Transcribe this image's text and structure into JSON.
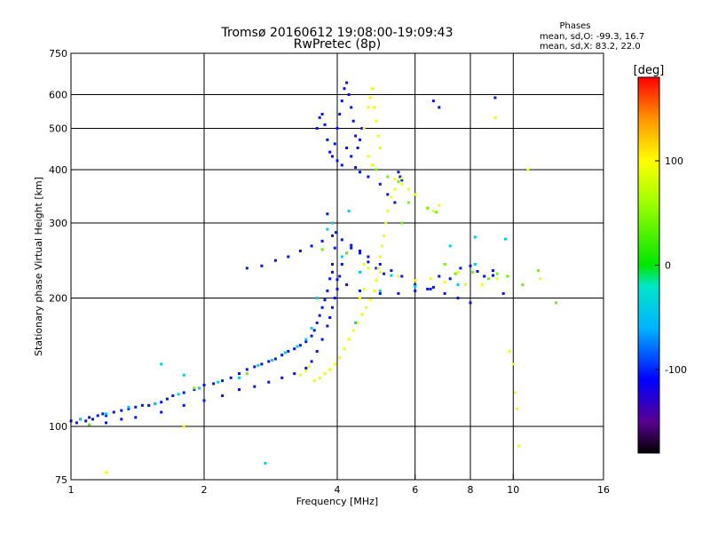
{
  "chart_data": {
    "type": "scatter",
    "title": "Tromsø 20160612 19:08:00-19:09:43",
    "subtitle": "RwPretec (8p)",
    "stats": {
      "heading": "Phases",
      "line_o": "mean, sd,O: -99.3, 16.7",
      "line_x": "mean, sd,X:  83.2, 22.0"
    },
    "xlabel": "Frequency [MHz]",
    "ylabel": "Stationary phase Virtual Height [km]",
    "x_scale": "log",
    "y_scale": "log",
    "xlim": [
      1,
      16
    ],
    "ylim": [
      75,
      750
    ],
    "x_ticks": [
      {
        "value": 1,
        "label": "1"
      },
      {
        "value": 2,
        "label": "2"
      },
      {
        "value": 4,
        "label": "4"
      },
      {
        "value": 6,
        "label": "6"
      },
      {
        "value": 8,
        "label": "8"
      },
      {
        "value": 10,
        "label": "10"
      },
      {
        "value": 16,
        "label": "16"
      }
    ],
    "y_ticks": [
      {
        "value": 75,
        "label": "75"
      },
      {
        "value": 100,
        "label": "100"
      },
      {
        "value": 200,
        "label": "200"
      },
      {
        "value": 300,
        "label": "300"
      },
      {
        "value": 400,
        "label": "400"
      },
      {
        "value": 500,
        "label": "500"
      },
      {
        "value": 600,
        "label": "600"
      },
      {
        "value": 750,
        "label": "750"
      }
    ],
    "x_gridlines": [
      2,
      4,
      6,
      8,
      10
    ],
    "y_gridlines": [
      100,
      200,
      300,
      400,
      500,
      600
    ],
    "grid": true,
    "colorbar": {
      "label": "[deg]",
      "range": [
        -180,
        180
      ],
      "ticks": [
        {
          "value": 100,
          "label": "100"
        },
        {
          "value": 0,
          "label": "0"
        },
        {
          "value": -100,
          "label": "-100"
        }
      ],
      "stops": [
        {
          "value": -180,
          "color": "#000000"
        },
        {
          "value": -150,
          "color": "#5a0090"
        },
        {
          "value": -110,
          "color": "#0000ff"
        },
        {
          "value": -60,
          "color": "#00b4ff"
        },
        {
          "value": -20,
          "color": "#00e6c8"
        },
        {
          "value": 0,
          "color": "#00e600"
        },
        {
          "value": 60,
          "color": "#a0ff00"
        },
        {
          "value": 100,
          "color": "#ffff00"
        },
        {
          "value": 140,
          "color": "#ff9600"
        },
        {
          "value": 180,
          "color": "#ff0000"
        }
      ]
    },
    "series": [
      {
        "mode": "O",
        "phase": -105,
        "points": [
          [
            1.0,
            103
          ],
          [
            1.03,
            102
          ],
          [
            1.05,
            104
          ],
          [
            1.08,
            103
          ],
          [
            1.1,
            105
          ],
          [
            1.12,
            104
          ],
          [
            1.15,
            106
          ],
          [
            1.18,
            107
          ],
          [
            1.2,
            106
          ],
          [
            1.25,
            108
          ],
          [
            1.3,
            109
          ],
          [
            1.35,
            110
          ],
          [
            1.4,
            111
          ],
          [
            1.45,
            112
          ],
          [
            1.5,
            112
          ],
          [
            1.55,
            113
          ],
          [
            1.6,
            114
          ],
          [
            1.65,
            116
          ],
          [
            1.7,
            118
          ],
          [
            1.8,
            120
          ],
          [
            1.9,
            122
          ],
          [
            2.0,
            125
          ],
          [
            2.1,
            126
          ],
          [
            2.2,
            128
          ],
          [
            2.3,
            130
          ],
          [
            2.4,
            133
          ],
          [
            2.5,
            136
          ],
          [
            2.6,
            138
          ],
          [
            2.7,
            140
          ],
          [
            2.8,
            142
          ],
          [
            2.9,
            144
          ],
          [
            3.0,
            147
          ],
          [
            3.1,
            150
          ],
          [
            3.2,
            152
          ],
          [
            3.3,
            155
          ],
          [
            3.4,
            158
          ],
          [
            3.5,
            163
          ],
          [
            3.55,
            168
          ],
          [
            3.6,
            175
          ],
          [
            3.65,
            182
          ],
          [
            3.7,
            190
          ],
          [
            3.75,
            198
          ],
          [
            3.8,
            208
          ],
          [
            3.85,
            222
          ],
          [
            3.9,
            240
          ],
          [
            3.95,
            262
          ],
          [
            3.97,
            285
          ],
          [
            3.8,
            315
          ],
          [
            1.1,
            101
          ],
          [
            1.2,
            102
          ],
          [
            1.3,
            104
          ],
          [
            1.4,
            105
          ],
          [
            1.6,
            108
          ],
          [
            1.8,
            112
          ],
          [
            2.0,
            115
          ],
          [
            2.2,
            118
          ],
          [
            2.4,
            122
          ],
          [
            2.6,
            124
          ],
          [
            2.8,
            127
          ],
          [
            3.0,
            130
          ],
          [
            3.2,
            133
          ],
          [
            3.4,
            137
          ],
          [
            3.5,
            142
          ],
          [
            3.6,
            150
          ],
          [
            3.7,
            160
          ],
          [
            3.8,
            172
          ],
          [
            3.85,
            180
          ],
          [
            3.9,
            190
          ],
          [
            3.95,
            200
          ],
          [
            4.0,
            210
          ],
          [
            4.05,
            225
          ],
          [
            4.1,
            240
          ],
          [
            4.2,
            255
          ],
          [
            4.3,
            262
          ],
          [
            4.5,
            258
          ],
          [
            4.7,
            250
          ],
          [
            5.0,
            240
          ],
          [
            5.3,
            232
          ],
          [
            5.6,
            225
          ],
          [
            6.0,
            215
          ],
          [
            6.5,
            210
          ],
          [
            7.0,
            205
          ],
          [
            7.5,
            200
          ],
          [
            8.0,
            195
          ],
          [
            2.5,
            235
          ],
          [
            2.7,
            238
          ],
          [
            2.9,
            245
          ],
          [
            3.1,
            250
          ],
          [
            3.3,
            258
          ],
          [
            3.5,
            265
          ],
          [
            3.7,
            272
          ],
          [
            3.9,
            280
          ],
          [
            4.1,
            274
          ],
          [
            4.3,
            266
          ],
          [
            4.5,
            255
          ],
          [
            4.7,
            243
          ],
          [
            4.9,
            235
          ],
          [
            5.1,
            228
          ],
          [
            3.9,
            430
          ],
          [
            3.95,
            460
          ],
          [
            4.0,
            500
          ],
          [
            4.05,
            540
          ],
          [
            4.1,
            580
          ],
          [
            4.15,
            620
          ],
          [
            4.2,
            640
          ],
          [
            4.25,
            600
          ],
          [
            4.3,
            560
          ],
          [
            4.35,
            520
          ],
          [
            4.4,
            480
          ],
          [
            4.45,
            450
          ],
          [
            4.5,
            470
          ],
          [
            4.55,
            500
          ],
          [
            3.85,
            440
          ],
          [
            3.8,
            470
          ],
          [
            3.75,
            510
          ],
          [
            3.7,
            540
          ],
          [
            3.65,
            530
          ],
          [
            3.6,
            500
          ],
          [
            4.0,
            420
          ],
          [
            4.1,
            410
          ],
          [
            4.2,
            450
          ],
          [
            4.3,
            430
          ],
          [
            4.4,
            405
          ],
          [
            4.5,
            395
          ],
          [
            4.7,
            385
          ],
          [
            5.0,
            370
          ],
          [
            5.2,
            350
          ],
          [
            5.4,
            335
          ],
          [
            5.5,
            395
          ],
          [
            5.55,
            385
          ],
          [
            5.6,
            378
          ],
          [
            3.9,
            230
          ],
          [
            4.0,
            221
          ],
          [
            4.2,
            215
          ],
          [
            4.5,
            208
          ],
          [
            5.0,
            205
          ],
          [
            5.5,
            205
          ],
          [
            6.0,
            208
          ],
          [
            6.4,
            210
          ],
          [
            6.6,
            212
          ],
          [
            6.8,
            225
          ],
          [
            7.2,
            222
          ],
          [
            7.6,
            235
          ],
          [
            8.0,
            238
          ],
          [
            8.3,
            231
          ],
          [
            8.6,
            225
          ],
          [
            9.0,
            232
          ],
          [
            6.6,
            580
          ],
          [
            6.8,
            560
          ],
          [
            9.1,
            590
          ],
          [
            9.0,
            226
          ],
          [
            9.5,
            205
          ]
        ]
      },
      {
        "mode": "X",
        "phase": 95,
        "points": [
          [
            3.55,
            128
          ],
          [
            3.65,
            130
          ],
          [
            3.75,
            133
          ],
          [
            3.85,
            136
          ],
          [
            3.95,
            140
          ],
          [
            4.05,
            145
          ],
          [
            4.15,
            152
          ],
          [
            4.25,
            160
          ],
          [
            4.35,
            168
          ],
          [
            4.45,
            175
          ],
          [
            4.55,
            183
          ],
          [
            4.65,
            190
          ],
          [
            4.75,
            198
          ],
          [
            4.85,
            208
          ],
          [
            4.9,
            220
          ],
          [
            4.95,
            235
          ],
          [
            5.0,
            250
          ],
          [
            5.05,
            265
          ],
          [
            5.1,
            280
          ],
          [
            5.15,
            300
          ],
          [
            5.2,
            320
          ],
          [
            5.3,
            345
          ],
          [
            5.4,
            360
          ],
          [
            5.6,
            370
          ],
          [
            5.8,
            360
          ],
          [
            6.0,
            350
          ],
          [
            4.7,
            560
          ],
          [
            4.75,
            590
          ],
          [
            4.8,
            620
          ],
          [
            4.85,
            560
          ],
          [
            4.9,
            520
          ],
          [
            4.95,
            480
          ],
          [
            5.0,
            450
          ],
          [
            4.6,
            500
          ],
          [
            4.7,
            430
          ],
          [
            4.8,
            410
          ],
          [
            5.4,
            380
          ],
          [
            5.6,
            382
          ],
          [
            4.6,
            240
          ],
          [
            4.7,
            235
          ],
          [
            5.0,
            230
          ],
          [
            5.5,
            225
          ],
          [
            6.0,
            220
          ],
          [
            6.5,
            222
          ],
          [
            7.0,
            218
          ],
          [
            7.5,
            230
          ],
          [
            7.8,
            215
          ],
          [
            8.5,
            215
          ],
          [
            9.2,
            222
          ],
          [
            11.5,
            222
          ],
          [
            6.6,
            320
          ],
          [
            6.8,
            330
          ],
          [
            4.5,
            200
          ],
          [
            4.6,
            210
          ],
          [
            9.8,
            150
          ],
          [
            10.0,
            140
          ],
          [
            10.1,
            120
          ],
          [
            10.2,
            110
          ],
          [
            10.3,
            90
          ],
          [
            9.1,
            530
          ],
          [
            10.8,
            400
          ],
          [
            1.8,
            100
          ],
          [
            1.2,
            78
          ],
          [
            3.3,
            132
          ],
          [
            3.4,
            135
          ],
          [
            3.45,
            138
          ]
        ]
      },
      {
        "mode": "scattered",
        "phase": -40,
        "points": [
          [
            1.05,
            104
          ],
          [
            1.2,
            107
          ],
          [
            1.35,
            111
          ],
          [
            1.55,
            113
          ],
          [
            1.75,
            119
          ],
          [
            1.95,
            123
          ],
          [
            2.15,
            127
          ],
          [
            2.4,
            130
          ],
          [
            2.65,
            139
          ],
          [
            2.85,
            143
          ],
          [
            3.05,
            149
          ],
          [
            3.25,
            154
          ],
          [
            3.4,
            160
          ],
          [
            3.6,
            200
          ],
          [
            3.8,
            290
          ],
          [
            3.9,
            300
          ],
          [
            4.1,
            250
          ],
          [
            4.25,
            320
          ],
          [
            4.5,
            230
          ],
          [
            5.0,
            208
          ],
          [
            5.3,
            226
          ],
          [
            6.0,
            213
          ],
          [
            7.5,
            215
          ],
          [
            8.2,
            240
          ],
          [
            2.75,
            82
          ],
          [
            1.6,
            140
          ],
          [
            1.8,
            132
          ],
          [
            3.5,
            170
          ],
          [
            4.4,
            175
          ],
          [
            7.2,
            265
          ],
          [
            8.2,
            278
          ],
          [
            9.6,
            275
          ]
        ]
      },
      {
        "mode": "scattered",
        "phase": 40,
        "points": [
          [
            1.1,
            101
          ],
          [
            1.9,
            123
          ],
          [
            2.5,
            133
          ],
          [
            3.7,
            260
          ],
          [
            4.2,
            255
          ],
          [
            4.9,
            400
          ],
          [
            5.2,
            385
          ],
          [
            5.5,
            375
          ],
          [
            5.6,
            300
          ],
          [
            5.8,
            335
          ],
          [
            6.4,
            325
          ],
          [
            6.7,
            318
          ],
          [
            7.0,
            240
          ],
          [
            7.4,
            228
          ],
          [
            8.1,
            230
          ],
          [
            8.8,
            222
          ],
          [
            9.2,
            228
          ],
          [
            9.7,
            225
          ],
          [
            10.5,
            215
          ],
          [
            11.4,
            232
          ],
          [
            12.5,
            195
          ]
        ]
      }
    ]
  }
}
